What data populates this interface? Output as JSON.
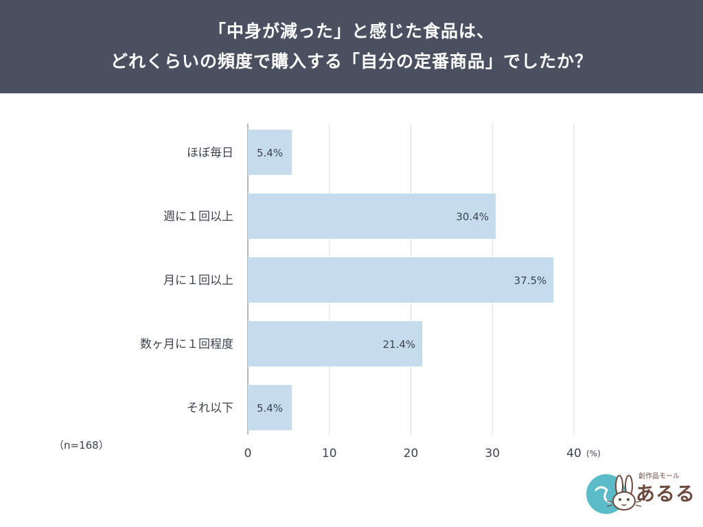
{
  "title": {
    "line1": "「中身が減った」と感じた食品は、",
    "line2": "どれくらいの頻度で購入する「自分の定番商品」でしたか？"
  },
  "chart_data": {
    "type": "bar",
    "orientation": "horizontal",
    "categories": [
      "ほぼ毎日",
      "週に１回以上",
      "月に１回以上",
      "数ヶ月に１回程度",
      "それ以下"
    ],
    "values": [
      5.4,
      30.4,
      37.5,
      21.4,
      5.4
    ],
    "value_labels": [
      "5.4%",
      "30.4%",
      "37.5%",
      "21.4%",
      "5.4%"
    ],
    "xlim": [
      0,
      40
    ],
    "xticks": [
      "0",
      "10",
      "20",
      "30",
      "40"
    ],
    "x_unit": "(%)",
    "sample_note": "（n=168）",
    "grid": true,
    "bar_color": "#c5dcec"
  },
  "logo": {
    "small_text": "創作品モール",
    "big_text": "あるる",
    "accent_color": "#5bbcc8",
    "text_color": "#6b4a3e"
  }
}
